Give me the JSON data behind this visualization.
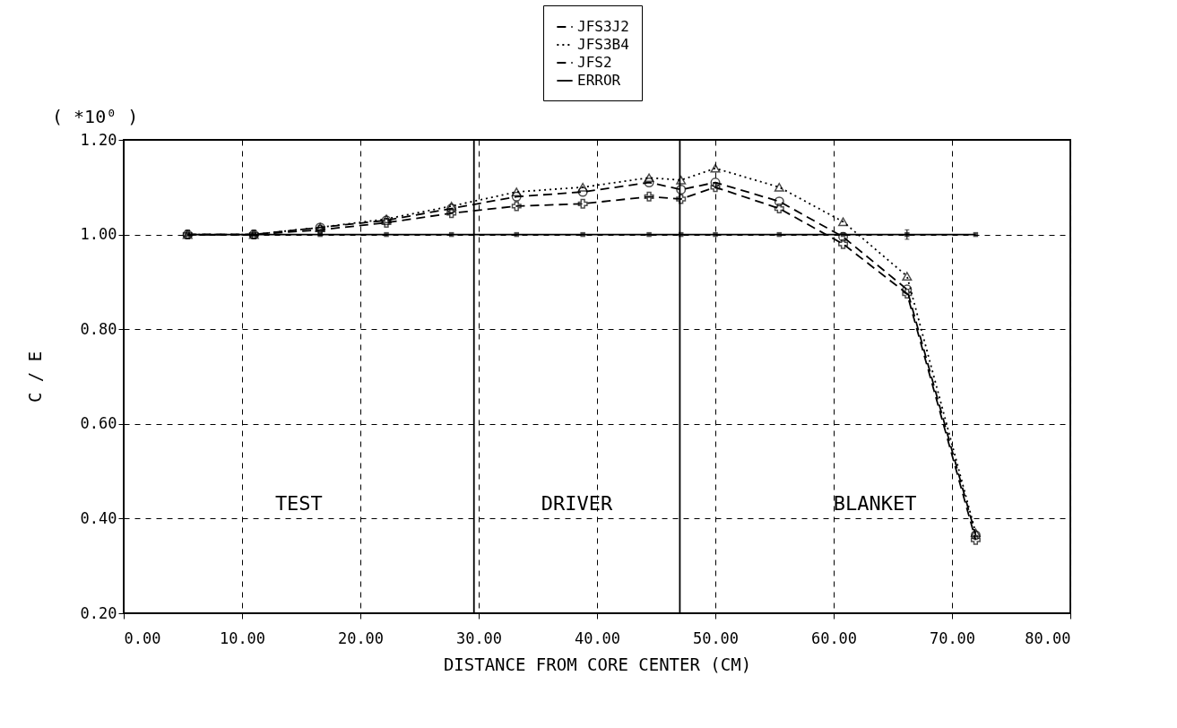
{
  "chart_data": {
    "type": "line",
    "xlabel": "DISTANCE FROM CORE CENTER (CM)",
    "ylabel": "C / E",
    "x": [
      5.4,
      11.0,
      16.6,
      22.2,
      27.7,
      33.2,
      38.8,
      44.4,
      47.1,
      50.0,
      55.4,
      60.8,
      66.2,
      72.0
    ],
    "series": [
      {
        "name": "JFS3J2",
        "color": "#000000",
        "line_style": "dashed",
        "marker": "circle",
        "values": [
          1.0,
          1.0,
          1.015,
          1.03,
          1.055,
          1.08,
          1.09,
          1.11,
          1.095,
          1.11,
          1.07,
          0.995,
          0.884,
          0.365
        ]
      },
      {
        "name": "JFS3B4",
        "color": "#000000",
        "line_style": "dotted",
        "marker": "triangle",
        "values": [
          1.0,
          1.0,
          1.015,
          1.033,
          1.06,
          1.09,
          1.1,
          1.12,
          1.115,
          1.14,
          1.1,
          1.027,
          0.912,
          0.37
        ]
      },
      {
        "name": "JFS2",
        "color": "#000000",
        "line_style": "dashed",
        "marker": "cross",
        "values": [
          1.0,
          1.0,
          1.01,
          1.025,
          1.045,
          1.06,
          1.065,
          1.08,
          1.075,
          1.1,
          1.055,
          0.98,
          0.875,
          0.355
        ]
      },
      {
        "name": "ERROR",
        "color": "#000000",
        "line_style": "solid",
        "marker": "square",
        "values": [
          1.0,
          1.0,
          1.0,
          1.0,
          1.0,
          1.0,
          1.0,
          1.0,
          1.0,
          1.0,
          1.0,
          1.0,
          1.0,
          1.0
        ],
        "errors": [
          null,
          null,
          null,
          null,
          null,
          null,
          null,
          null,
          null,
          null,
          null,
          null,
          0.01,
          null
        ]
      }
    ],
    "xlim": [
      0,
      80
    ],
    "xticks": [
      {
        "value": 0,
        "label": "0.00"
      },
      {
        "value": 10,
        "label": "10.00"
      },
      {
        "value": 20,
        "label": "20.00"
      },
      {
        "value": 30,
        "label": "30.00"
      },
      {
        "value": 40,
        "label": "40.00"
      },
      {
        "value": 50,
        "label": "50.00"
      },
      {
        "value": 60,
        "label": "60.00"
      },
      {
        "value": 70,
        "label": "70.00"
      },
      {
        "value": 80,
        "label": "80.00"
      }
    ],
    "ylim": [
      0.2,
      1.2
    ],
    "yticks": [
      {
        "value": 0.2,
        "label": "0.20"
      },
      {
        "value": 0.4,
        "label": "0.40"
      },
      {
        "value": 0.6,
        "label": "0.60"
      },
      {
        "value": 0.8,
        "label": "0.80"
      },
      {
        "value": 1.0,
        "label": "1.00"
      },
      {
        "value": 1.2,
        "label": "1.20"
      }
    ],
    "ref_lines": [
      {
        "axis": "x",
        "value": 29.6,
        "color": "#000000",
        "line_style": "solid"
      },
      {
        "axis": "x",
        "value": 47.0,
        "color": "#000000",
        "line_style": "solid"
      }
    ],
    "annotations": [
      "( *10⁰ )",
      "TEST",
      "DRIVER",
      "BLANKET"
    ],
    "grid": true,
    "legend": "top"
  }
}
